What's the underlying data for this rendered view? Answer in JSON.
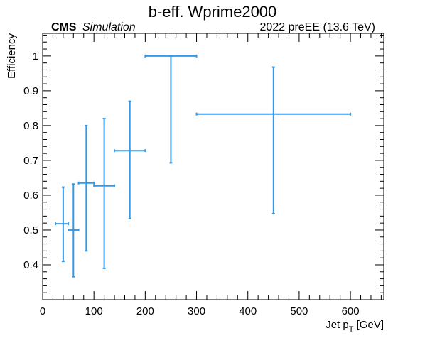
{
  "chart_data": {
    "type": "scatter",
    "title": "b-eff. Wprime2000",
    "header_left_bold": "CMS",
    "header_left_italic": "Simulation",
    "header_right": "2022 preEE (13.6 TeV)",
    "xlabel": {
      "pre": "Jet p",
      "sub": "T",
      "post": " [GeV]"
    },
    "ylabel": "Efficiency",
    "xlim": [
      0,
      665
    ],
    "ylim": [
      0.3,
      1.065
    ],
    "xticks": [
      0,
      100,
      200,
      300,
      400,
      500,
      600
    ],
    "yticks": [
      0.4,
      0.5,
      0.6,
      0.7,
      0.8,
      0.9,
      1
    ],
    "ytick_labels": [
      "0.4",
      "0.5",
      "0.6",
      "0.7",
      "0.8",
      "0.9",
      "1"
    ],
    "grid": false,
    "legend": "none",
    "series": [
      {
        "color": "#3399e6",
        "points": [
          {
            "x": 40,
            "xlo": 25,
            "xhi": 50,
            "y": 0.518,
            "ylo": 0.41,
            "yhi": 0.623
          },
          {
            "x": 60,
            "xlo": 50,
            "xhi": 70,
            "y": 0.5,
            "ylo": 0.366,
            "yhi": 0.632
          },
          {
            "x": 85,
            "xlo": 70,
            "xhi": 100,
            "y": 0.635,
            "ylo": 0.44,
            "yhi": 0.8
          },
          {
            "x": 120,
            "xlo": 100,
            "xhi": 140,
            "y": 0.627,
            "ylo": 0.39,
            "yhi": 0.82
          },
          {
            "x": 170,
            "xlo": 140,
            "xhi": 200,
            "y": 0.728,
            "ylo": 0.533,
            "yhi": 0.87
          },
          {
            "x": 250,
            "xlo": 200,
            "xhi": 300,
            "y": 1.0,
            "ylo": 0.693,
            "yhi": 1.0
          },
          {
            "x": 450,
            "xlo": 300,
            "xhi": 600,
            "y": 0.833,
            "ylo": 0.547,
            "yhi": 0.968
          }
        ]
      }
    ]
  }
}
